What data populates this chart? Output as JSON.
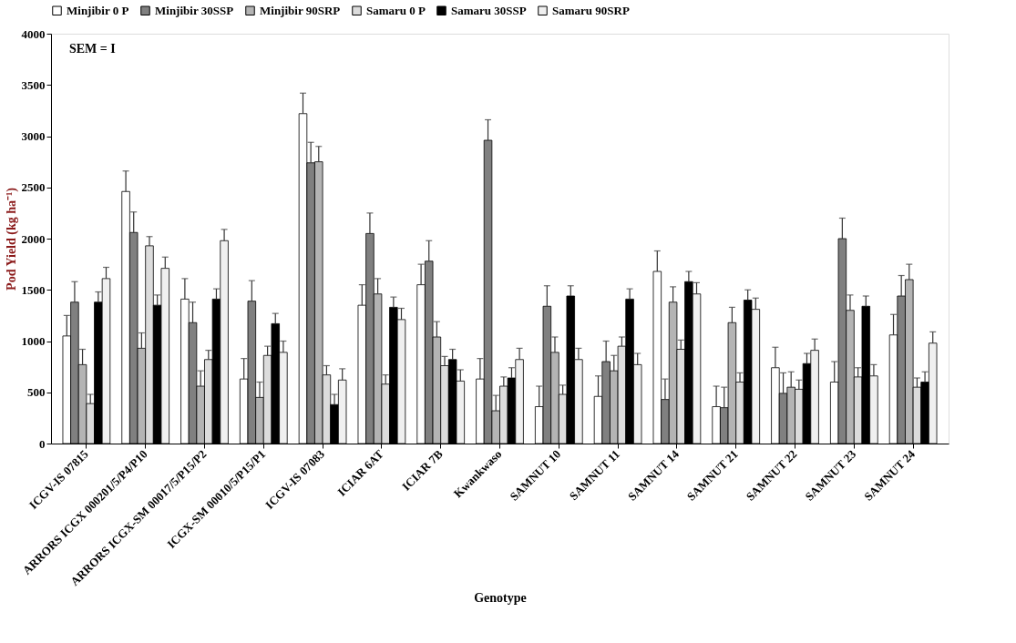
{
  "chart_data": {
    "type": "bar",
    "xlabel": "Genotype",
    "ylabel": "Pod Yield (kg ha⁻¹)",
    "categories": [
      "ICGV-IS 07815",
      "ARRORS ICGX 000201/5/P4/P10",
      "ARRORS ICGX-SM 00017/5/P15/P2",
      "ICGX-SM 00010/5/P15/P1",
      "ICGV-IS 07083",
      "ICIAR 6AT",
      "ICIAR 7B",
      "Kwankwaso",
      "SAMNUT 10",
      "SAMNUT 11",
      "SAMNUT 14",
      "SAMNUT 21",
      "SAMNUT 22",
      "SAMNUT 23",
      "SAMNUT 24"
    ],
    "series": [
      {
        "name": "Minjibir 0 P",
        "color": "#ffffff",
        "values": [
          1050,
          2460,
          1410,
          630,
          3220,
          1350,
          1550,
          630,
          360,
          460,
          1680,
          360,
          740,
          600,
          1060
        ],
        "errors": [
          200,
          200,
          200,
          200,
          200,
          200,
          200,
          200,
          200,
          200,
          200,
          200,
          200,
          200,
          200
        ]
      },
      {
        "name": "Minjibir 30SSP",
        "color": "#808080",
        "values": [
          1380,
          2060,
          1180,
          1390,
          2740,
          2050,
          1780,
          2960,
          1340,
          800,
          430,
          350,
          490,
          2000,
          1440
        ],
        "errors": [
          200,
          200,
          200,
          200,
          200,
          200,
          200,
          200,
          200,
          200,
          200,
          200,
          200,
          200,
          200
        ]
      },
      {
        "name": "Minjibir 90SRP",
        "color": "#b4b4b4",
        "values": [
          770,
          930,
          560,
          450,
          2750,
          1460,
          1040,
          320,
          890,
          710,
          1380,
          1180,
          550,
          1300,
          1600
        ],
        "errors": [
          150,
          150,
          150,
          150,
          150,
          150,
          150,
          150,
          150,
          150,
          150,
          150,
          150,
          150,
          150
        ]
      },
      {
        "name": "Samaru 0 P",
        "color": "#dcdcdc",
        "values": [
          390,
          1930,
          820,
          860,
          670,
          580,
          760,
          560,
          480,
          950,
          920,
          600,
          530,
          650,
          550
        ],
        "errors": [
          90,
          90,
          90,
          90,
          90,
          90,
          90,
          90,
          90,
          90,
          90,
          90,
          90,
          90,
          90
        ]
      },
      {
        "name": "Samaru 30SSP",
        "color": "#000000",
        "values": [
          1380,
          1350,
          1410,
          1170,
          380,
          1330,
          820,
          640,
          1440,
          1410,
          1580,
          1400,
          780,
          1340,
          600
        ],
        "errors": [
          100,
          100,
          100,
          100,
          100,
          100,
          100,
          100,
          100,
          100,
          100,
          100,
          100,
          100,
          100
        ]
      },
      {
        "name": "Samaru 90SRP",
        "color": "#f0f0f0",
        "values": [
          1610,
          1710,
          1980,
          890,
          620,
          1210,
          610,
          820,
          820,
          770,
          1460,
          1310,
          910,
          660,
          980
        ],
        "errors": [
          110,
          110,
          110,
          110,
          110,
          110,
          110,
          110,
          110,
          110,
          110,
          110,
          110,
          110,
          110
        ]
      }
    ],
    "ylim": [
      0,
      4000
    ],
    "yticks": [
      0,
      500,
      1000,
      1500,
      2000,
      2500,
      3000,
      3500,
      4000
    ],
    "grid": false,
    "legend": "top",
    "annotations": [
      "SEM = I"
    ]
  }
}
